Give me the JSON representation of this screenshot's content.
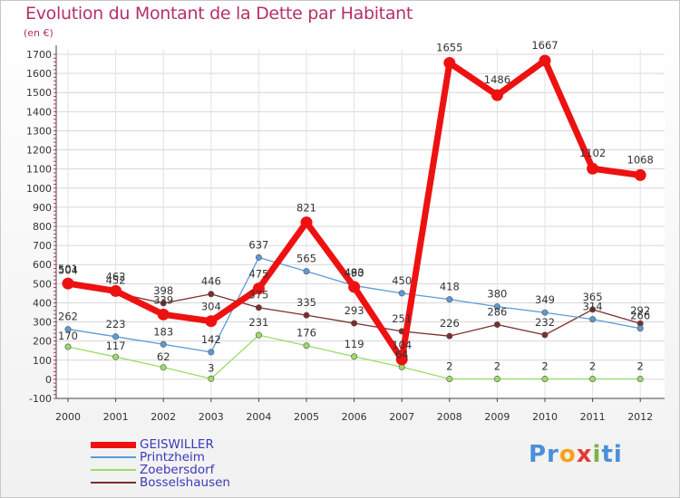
{
  "title": "Evolution du Montant de la Dette par Habitant",
  "unit": "(en €)",
  "colors": {
    "title": "#b5306a",
    "GEISWILLER": "#ee1111",
    "Printzheim": "#5b9bd5",
    "Zoebersdorf": "#99dd66",
    "Bosselshausen": "#7a2e2e"
  },
  "chart_data": {
    "type": "line",
    "title": "Evolution du Montant de la Dette par Habitant",
    "ylabel": "(en €)",
    "xlabel": "",
    "ylim": [
      -100,
      1700
    ],
    "y_ticks": [
      -100,
      0,
      100,
      200,
      300,
      400,
      500,
      600,
      700,
      800,
      900,
      1000,
      1100,
      1200,
      1300,
      1400,
      1500,
      1600,
      1700
    ],
    "x": [
      "2000",
      "2001",
      "2002",
      "2003",
      "2004",
      "2005",
      "2006",
      "2007",
      "2008",
      "2009",
      "2010",
      "2011",
      "2012"
    ],
    "grid": true,
    "legend_position": "bottom-left",
    "series": [
      {
        "name": "GEISWILLER",
        "values": [
          501,
          462,
          339,
          304,
          475,
          821,
          483,
          104,
          1655,
          1486,
          1667,
          1102,
          1068
        ]
      },
      {
        "name": "Printzheim",
        "values": [
          262,
          223,
          183,
          142,
          637,
          565,
          490,
          450,
          418,
          380,
          349,
          314,
          266
        ]
      },
      {
        "name": "Zoebersdorf",
        "values": [
          170,
          117,
          62,
          3,
          231,
          176,
          119,
          64,
          2,
          2,
          2,
          2,
          2
        ]
      },
      {
        "name": "Bosselshausen",
        "values": [
          504,
          452,
          398,
          446,
          375,
          335,
          293,
          251,
          226,
          286,
          232,
          365,
          292
        ]
      }
    ]
  },
  "logo": {
    "text_parts": [
      "Pr",
      "o",
      "x",
      "i",
      "ti"
    ],
    "colors": [
      "#4a90d9",
      "#f7a21b",
      "#e53935",
      "#7cb342",
      "#4a90d9"
    ]
  }
}
